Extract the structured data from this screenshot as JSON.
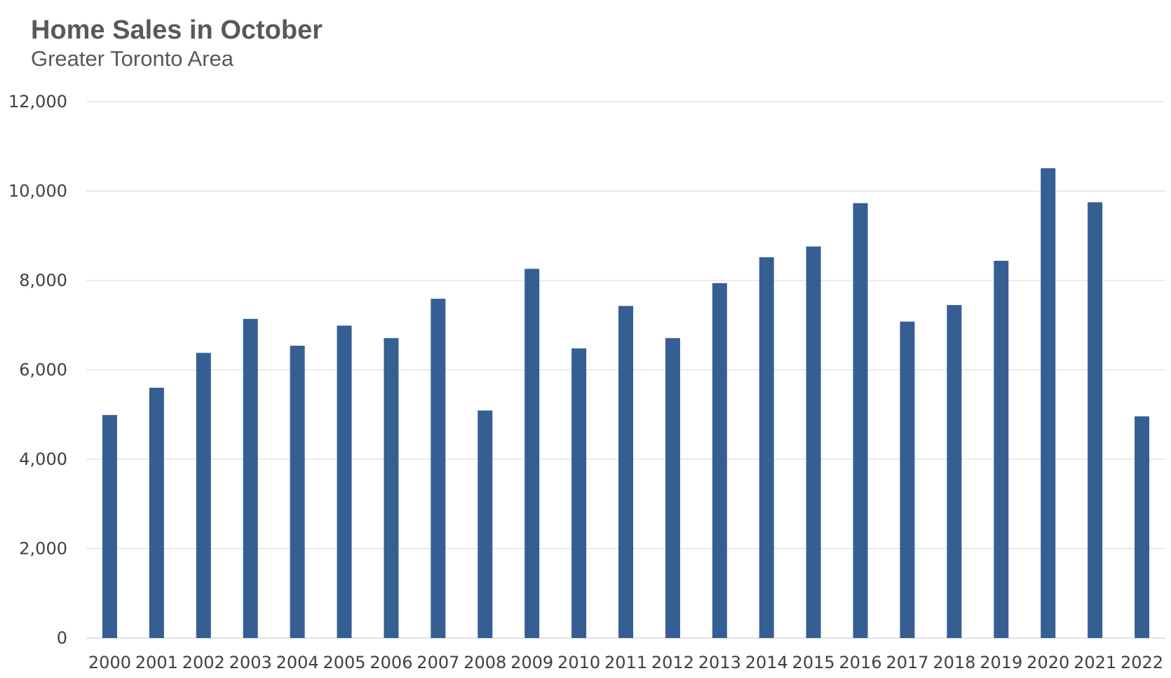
{
  "title": "Home Sales in October",
  "subtitle": "Greater Toronto Area",
  "colors": {
    "bar": "#355F93",
    "gridline": "#D9D9D9",
    "axis_text": "#404040",
    "title_text": "#595959"
  },
  "chart_data": {
    "type": "bar",
    "title": "Home Sales in October",
    "subtitle": "Greater Toronto Area",
    "xlabel": "",
    "ylabel": "",
    "ylim": [
      0,
      12000
    ],
    "yticks": [
      0,
      2000,
      4000,
      6000,
      8000,
      10000,
      12000
    ],
    "ytick_labels": [
      "0",
      "2,000",
      "4,000",
      "6,000",
      "8,000",
      "10,000",
      "12,000"
    ],
    "grid": true,
    "legend": "none",
    "categories": [
      "2000",
      "2001",
      "2002",
      "2003",
      "2004",
      "2005",
      "2006",
      "2007",
      "2008",
      "2009",
      "2010",
      "2011",
      "2012",
      "2013",
      "2014",
      "2015",
      "2016",
      "2017",
      "2018",
      "2019",
      "2020",
      "2021",
      "2022"
    ],
    "values": [
      4990,
      5600,
      6380,
      7140,
      6540,
      6990,
      6710,
      7590,
      5090,
      8260,
      6480,
      7430,
      6710,
      7940,
      8520,
      8760,
      9730,
      7080,
      7450,
      8440,
      10510,
      9750,
      4960
    ]
  }
}
